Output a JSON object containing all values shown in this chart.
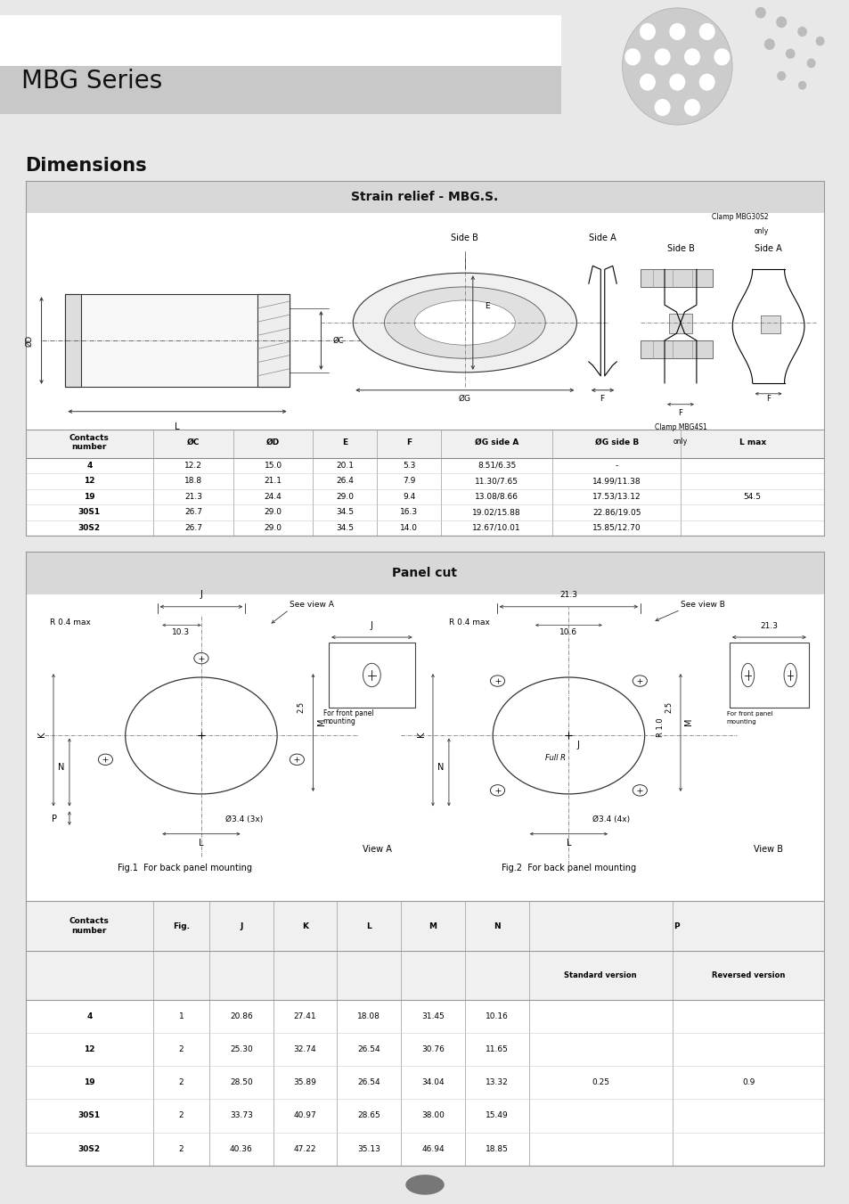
{
  "page_bg": "#e8e8e8",
  "title_text": "MBG Series",
  "dimensions_label": "Dimensions",
  "section1_title": "Strain relief - MBG.S.",
  "section2_title": "Panel cut",
  "strain_table_headers": [
    "Contacts\nnumber",
    "ØC",
    "ØD",
    "E",
    "F",
    "ØG side A",
    "ØG side B",
    "L max"
  ],
  "strain_table_data": [
    [
      "4",
      "12.2",
      "15.0",
      "20.1",
      "5.3",
      "8.51/6.35",
      "-",
      ""
    ],
    [
      "12",
      "18.8",
      "21.1",
      "26.4",
      "7.9",
      "11.30/7.65",
      "14.99/11.38",
      ""
    ],
    [
      "19",
      "21.3",
      "24.4",
      "29.0",
      "9.4",
      "13.08/8.66",
      "17.53/13.12",
      "54.5"
    ],
    [
      "30S1",
      "26.7",
      "29.0",
      "34.5",
      "16.3",
      "19.02/15.88",
      "22.86/19.05",
      ""
    ],
    [
      "30S2",
      "26.7",
      "29.0",
      "34.5",
      "14.0",
      "12.67/10.01",
      "15.85/12.70",
      ""
    ]
  ],
  "panel_table_headers1": [
    "Contacts\nnumber",
    "Fig.",
    "J",
    "K",
    "L",
    "M",
    "N"
  ],
  "panel_table_headers2": [
    "Standard version",
    "Reversed version"
  ],
  "panel_table_data": [
    [
      "4",
      "1",
      "20.86",
      "27.41",
      "18.08",
      "31.45",
      "10.16"
    ],
    [
      "12",
      "2",
      "25.30",
      "32.74",
      "26.54",
      "30.76",
      "11.65"
    ],
    [
      "19",
      "2",
      "28.50",
      "35.89",
      "26.54",
      "34.04",
      "13.32"
    ],
    [
      "30S1",
      "2",
      "33.73",
      "40.97",
      "28.65",
      "38.00",
      "15.49"
    ],
    [
      "30S2",
      "2",
      "40.36",
      "47.22",
      "35.13",
      "46.94",
      "18.85"
    ]
  ],
  "panel_p_standard": "0.25",
  "panel_p_reversed": "0.9",
  "fig1_caption": "Fig.1  For back panel mounting",
  "fig2_caption": "Fig.2  For back panel mounting"
}
